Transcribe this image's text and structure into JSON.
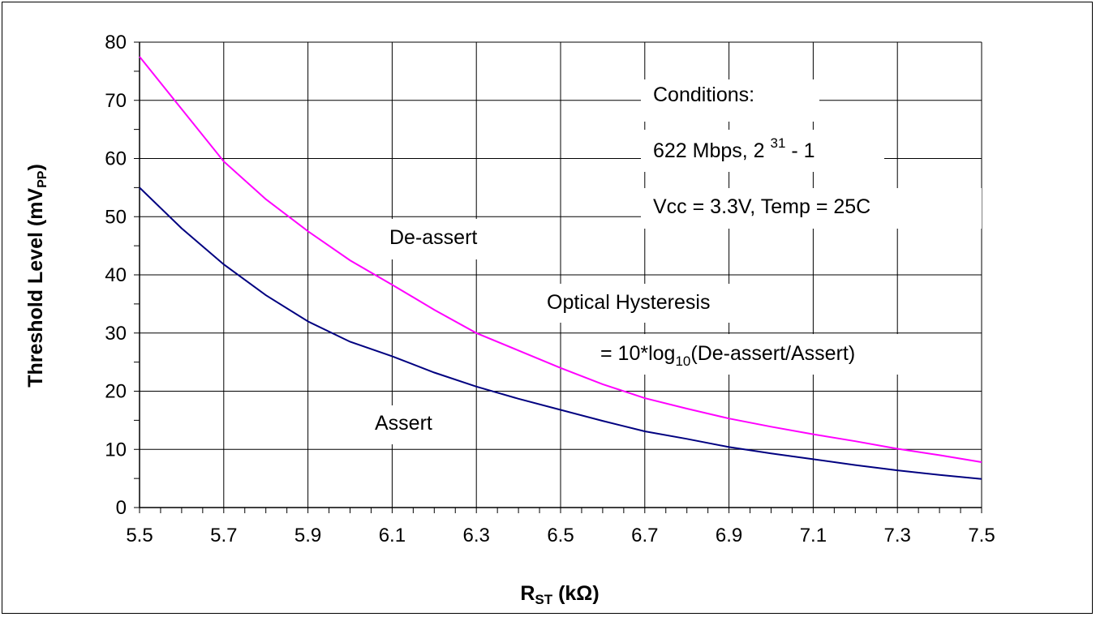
{
  "chart_data": {
    "type": "line",
    "xlabel": {
      "main": "R",
      "sub": "ST",
      "tail": " (kΩ)"
    },
    "ylabel": {
      "main": "Threshold Level (mV",
      "sub": "PP",
      "tail": ")"
    },
    "xlim": [
      5.5,
      7.5
    ],
    "ylim": [
      0,
      80
    ],
    "x_ticks": [
      "5.5",
      "5.7",
      "5.9",
      "6.1",
      "6.3",
      "6.5",
      "6.7",
      "6.9",
      "7.1",
      "7.3",
      "7.5"
    ],
    "y_ticks": [
      "0",
      "10",
      "20",
      "30",
      "40",
      "50",
      "60",
      "70",
      "80"
    ],
    "grid": true,
    "series": [
      {
        "name": "De-assert",
        "color": "#ff00ff",
        "x": [
          5.5,
          5.6,
          5.7,
          5.8,
          5.9,
          6.0,
          6.1,
          6.2,
          6.3,
          6.4,
          6.5,
          6.6,
          6.7,
          6.8,
          6.9,
          7.0,
          7.1,
          7.2,
          7.3,
          7.4,
          7.5
        ],
        "y": [
          77.5,
          68.5,
          59.5,
          53.0,
          47.5,
          42.5,
          38.3,
          34.0,
          30.0,
          27.0,
          24.0,
          21.2,
          18.8,
          17.0,
          15.3,
          13.9,
          12.6,
          11.4,
          10.1,
          9.0,
          7.8
        ]
      },
      {
        "name": "Assert",
        "color": "#000080",
        "x": [
          5.5,
          5.6,
          5.7,
          5.8,
          5.9,
          6.0,
          6.1,
          6.2,
          6.3,
          6.4,
          6.5,
          6.6,
          6.7,
          6.8,
          6.9,
          7.0,
          7.1,
          7.2,
          7.3,
          7.4,
          7.5
        ],
        "y": [
          55.0,
          48.0,
          41.8,
          36.5,
          32.0,
          28.5,
          26.0,
          23.2,
          20.8,
          18.7,
          16.8,
          14.9,
          13.1,
          11.8,
          10.4,
          9.3,
          8.3,
          7.3,
          6.4,
          5.6,
          4.9
        ]
      }
    ],
    "annotations": {
      "conditions_title": "Conditions:",
      "conditions_rate_a": "622 Mbps, 2 ",
      "conditions_rate_exp": "31",
      "conditions_rate_b": " - 1",
      "conditions_supply": "Vcc = 3.3V, Temp = 25C",
      "deassert_label": "De-assert",
      "assert_label": "Assert",
      "hysteresis_title": "Optical Hysteresis",
      "hysteresis_formula_a": "= 10*log",
      "hysteresis_formula_sub": "10",
      "hysteresis_formula_b": "(De-assert/Assert)"
    }
  }
}
